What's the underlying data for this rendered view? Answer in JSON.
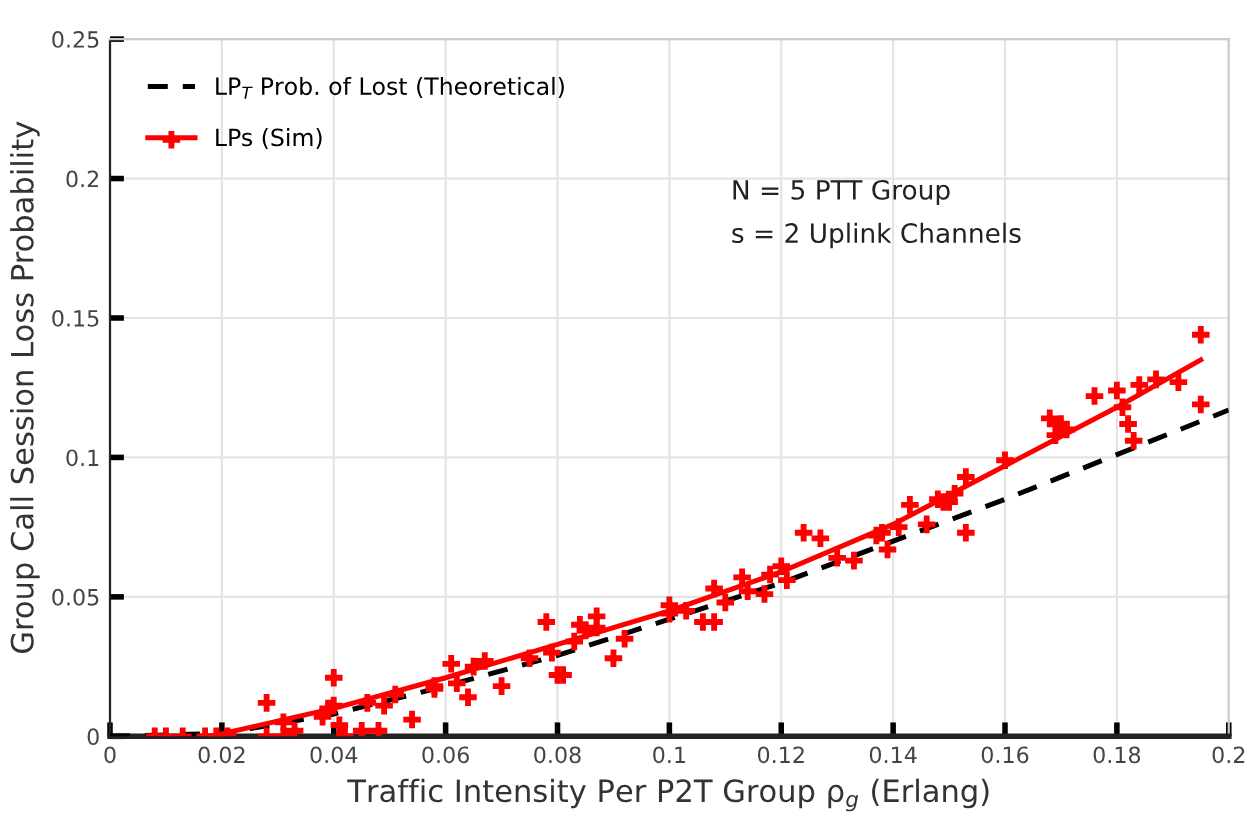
{
  "chart_data": {
    "type": "scatter",
    "xlabel": "Traffic Intensity Per P2T Group ρ$_{g}$ (Erlang)",
    "ylabel": "Group Call Session Loss Probability",
    "xlim": [
      0,
      0.2
    ],
    "ylim": [
      0,
      0.25
    ],
    "xticks": [
      0,
      0.02,
      0.04,
      0.06,
      0.08,
      0.1,
      0.12,
      0.14,
      0.16,
      0.18,
      0.2
    ],
    "yticks": [
      0,
      0.05,
      0.1,
      0.15,
      0.2,
      0.25
    ],
    "grid": true,
    "legend": "top left",
    "annotations": [
      "N = 5 PTT Group",
      "s = 2 Uplink Channels"
    ],
    "series": [
      {
        "name": "LP$_{T}$ Prob. of Lost (Theoretical)",
        "type": "line",
        "line_style": "dashed",
        "color": "#000000",
        "x": [
          0,
          0.02,
          0.04,
          0.06,
          0.08,
          0.1,
          0.12,
          0.14,
          0.16,
          0.18,
          0.2
        ],
        "values": [
          0,
          0.001,
          0.008,
          0.018,
          0.029,
          0.042,
          0.055,
          0.07,
          0.085,
          0.101,
          0.117
        ]
      },
      {
        "name": "LPs (Sim)",
        "marker": "cross",
        "color": "#ff0000",
        "x": [
          0.008,
          0.01,
          0.013,
          0.017,
          0.019,
          0.021,
          0.028,
          0.028,
          0.031,
          0.031,
          0.033,
          0.038,
          0.039,
          0.04,
          0.04,
          0.041,
          0.042,
          0.045,
          0.046,
          0.048,
          0.049,
          0.051,
          0.054,
          0.058,
          0.058,
          0.061,
          0.062,
          0.064,
          0.065,
          0.067,
          0.07,
          0.075,
          0.078,
          0.079,
          0.08,
          0.081,
          0.083,
          0.084,
          0.085,
          0.087,
          0.087,
          0.09,
          0.092,
          0.1,
          0.1,
          0.103,
          0.106,
          0.108,
          0.108,
          0.11,
          0.113,
          0.114,
          0.117,
          0.118,
          0.12,
          0.121,
          0.124,
          0.127,
          0.13,
          0.133,
          0.137,
          0.138,
          0.139,
          0.141,
          0.143,
          0.146,
          0.148,
          0.149,
          0.15,
          0.151,
          0.153,
          0.153,
          0.16,
          0.168,
          0.169,
          0.17,
          0.171,
          0.176,
          0.18,
          0.181,
          0.182,
          0.183,
          0.184,
          0.187,
          0.191,
          0.195,
          0.195
        ],
        "values": [
          0,
          0,
          0,
          0,
          0,
          0,
          0.012,
          0,
          0.005,
          0,
          0.002,
          0.007,
          0.01,
          0.021,
          0.011,
          0.004,
          0,
          0.002,
          0.012,
          0.002,
          0.011,
          0.015,
          0.006,
          0.017,
          0.018,
          0.026,
          0.019,
          0.014,
          0.025,
          0.027,
          0.018,
          0.028,
          0.041,
          0.03,
          0.022,
          0.022,
          0.034,
          0.04,
          0.038,
          0.043,
          0.039,
          0.028,
          0.035,
          0.044,
          0.047,
          0.045,
          0.041,
          0.041,
          0.053,
          0.048,
          0.057,
          0.052,
          0.051,
          0.058,
          0.061,
          0.056,
          0.073,
          0.071,
          0.064,
          0.063,
          0.072,
          0.073,
          0.067,
          0.075,
          0.083,
          0.076,
          0.085,
          0.084,
          0.084,
          0.087,
          0.073,
          0.093,
          0.099,
          0.114,
          0.108,
          0.112,
          0.11,
          0.122,
          0.124,
          0.118,
          0.112,
          0.106,
          0.126,
          0.128,
          0.127,
          0.144,
          0.119
        ]
      },
      {
        "type": "line",
        "line_style": "solid",
        "color": "#ff0000",
        "x": [
          0.018,
          0.04,
          0.06,
          0.08,
          0.1,
          0.12,
          0.14,
          0.16,
          0.18,
          0.195
        ],
        "values": [
          0,
          0.01,
          0.021,
          0.033,
          0.045,
          0.059,
          0.076,
          0.097,
          0.118,
          0.135
        ]
      }
    ]
  }
}
